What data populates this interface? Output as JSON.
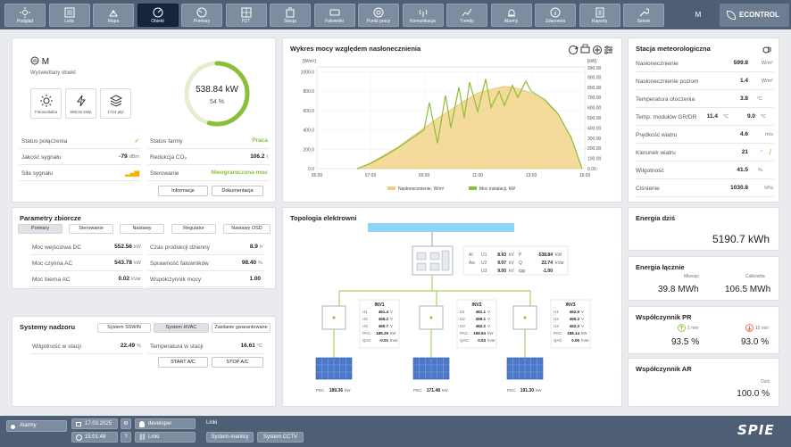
{
  "nav": {
    "items": [
      {
        "label": "Podgląd",
        "icon": "sun-icon"
      },
      {
        "label": "Lista",
        "icon": "list-icon"
      },
      {
        "label": "Mapa",
        "icon": "map-icon"
      },
      {
        "label": "Obiekt",
        "icon": "gauge-icon"
      },
      {
        "label": "Pomiary",
        "icon": "meter-icon"
      },
      {
        "label": "PZT",
        "icon": "plan-icon"
      },
      {
        "label": "Stacja",
        "icon": "station-icon"
      },
      {
        "label": "Falowniki",
        "icon": "inverter-icon"
      },
      {
        "label": "Punkt pracy",
        "icon": "target-icon"
      },
      {
        "label": "Komunikacja",
        "icon": "antenna-icon"
      },
      {
        "label": "Trendy",
        "icon": "trend-icon"
      },
      {
        "label": "Alarmy",
        "icon": "alarm-icon"
      },
      {
        "label": "Zdarzenia",
        "icon": "info-icon"
      },
      {
        "label": "Raporty",
        "icon": "report-icon"
      },
      {
        "label": "Serwis",
        "icon": "wrench-icon"
      }
    ],
    "active_index": 3,
    "user_initial": "M",
    "logo": "ECONTROL"
  },
  "object": {
    "name": "M",
    "subtitle": "Wyświetlany obiekt",
    "badges": [
      "Fotowoltaika",
      "999,92 kWp",
      "1724 płyt"
    ],
    "power": "538.84 kW",
    "percent": "54 %",
    "percent_value": 54,
    "left_rows": [
      {
        "label": "Status połączenia",
        "value": "✓",
        "unit": ""
      },
      {
        "label": "Jakość sygnału",
        "value": "-79",
        "unit": "dBm"
      },
      {
        "label": "Siła sygnału",
        "value": "▂▄▆",
        "unit": ""
      }
    ],
    "right_rows": [
      {
        "label": "Status farmy",
        "value": "Praca",
        "unit": ""
      },
      {
        "label": "Redukcja CO₂",
        "value": "106.2",
        "unit": "t"
      },
      {
        "label": "Sterowanie",
        "value": "Nieograniczona moc",
        "unit": ""
      }
    ],
    "info_button": "Informacje",
    "docs_button": "Dokumentacja"
  },
  "chart": {
    "title": "Wykres mocy względem nasłonecznienia",
    "chart_data": {
      "type": "area",
      "left_unit": "[W/m²]",
      "right_unit": "[kW]",
      "x_ticks": [
        "05:00",
        "07:00",
        "09:00",
        "11:00",
        "13:00",
        "15:00"
      ],
      "left_ticks": [
        "1000.0",
        "800.0",
        "600.0",
        "400.0",
        "200.0",
        "0.0"
      ],
      "right_ticks": [
        "990.00",
        "900.00",
        "800.00",
        "700.00",
        "600.00",
        "500.00",
        "400.00",
        "300.00",
        "200.00",
        "100.00",
        "0.00"
      ],
      "left_range": [
        0,
        1050
      ],
      "right_range": [
        0,
        1000
      ],
      "x_range": [
        5,
        15
      ],
      "series": [
        {
          "name": "Nasłonecznienie, W/m²",
          "color": "#f0cf7a",
          "x": [
            6.5,
            7.0,
            7.5,
            8.0,
            8.5,
            9.0,
            9.5,
            10.0,
            10.5,
            11.0,
            11.5,
            12.0,
            12.5,
            13.0,
            13.5,
            14.0,
            14.5,
            14.9
          ],
          "y": [
            0,
            60,
            140,
            220,
            320,
            420,
            520,
            610,
            700,
            780,
            820,
            850,
            830,
            780,
            700,
            560,
            320,
            0
          ]
        },
        {
          "name": "Moc instalacji, kW",
          "color": "#8bbf3a",
          "x": [
            6.5,
            7.0,
            7.5,
            8.0,
            8.5,
            9.0,
            9.2,
            9.5,
            9.8,
            10.0,
            10.3,
            10.5,
            10.7,
            11.0,
            11.3,
            11.5,
            11.8,
            12.0,
            12.3,
            12.5,
            12.8,
            13.0,
            13.5,
            14.0,
            14.5,
            14.9
          ],
          "y": [
            0,
            50,
            120,
            200,
            290,
            380,
            650,
            250,
            720,
            400,
            800,
            500,
            850,
            560,
            880,
            600,
            760,
            620,
            820,
            700,
            860,
            760,
            680,
            540,
            300,
            0
          ]
        }
      ]
    }
  },
  "met": {
    "title": "Stacja meteorologiczna",
    "rows": [
      {
        "label": "Nasłonecznienie",
        "value": "599.8",
        "unit": "W/m²"
      },
      {
        "label": "Nasłonecznienie poziom",
        "value": "1.4",
        "unit": "W/m²"
      },
      {
        "label": "Temperatura otoczenia",
        "value": "3.8",
        "unit": "°C"
      },
      {
        "label": "Temp. modułów GR/DR",
        "value": "11.4",
        "unit": "°C",
        "value2": "9.0",
        "unit2": "°C"
      },
      {
        "label": "Prędkość wiatru",
        "value": "4.6",
        "unit": "m/s"
      },
      {
        "label": "Kierunek wiatru",
        "value": "21",
        "unit": "°"
      },
      {
        "label": "Wilgotność",
        "value": "41.5",
        "unit": "%"
      },
      {
        "label": "Ciśnienie",
        "value": "1030.8",
        "unit": "hPa"
      }
    ]
  },
  "params": {
    "title": "Parametry zbiorcze",
    "tabs": [
      "Pomiary",
      "Sterowanie",
      "Nastawy",
      "Regulator",
      "Nastawy OSD"
    ],
    "left_rows": [
      {
        "label": "Moc wejściowa DC",
        "value": "552.56",
        "unit": "kW"
      },
      {
        "label": "Moc czynna AC",
        "value": "543.78",
        "unit": "kW"
      },
      {
        "label": "Moc bierna AC",
        "value": "0.02",
        "unit": "kVar"
      }
    ],
    "right_rows": [
      {
        "label": "Czas produkcji dzienny",
        "value": "8.9",
        "unit": "h"
      },
      {
        "label": "Sprawność falowników",
        "value": "98.40",
        "unit": "%"
      },
      {
        "label": "Współczynnik mocy",
        "value": "1.00",
        "unit": ""
      }
    ]
  },
  "systems": {
    "title": "Systemy nadzoru",
    "tabs": [
      "System SSWiN",
      "System HVAC",
      "Zasilanie gwarantowane"
    ],
    "humidity_label": "Wilgotność w stacji",
    "humidity_value": "22.49",
    "humidity_unit": "%",
    "temp_label": "Temperatura w stacji",
    "temp_value": "16.61",
    "temp_unit": "°C",
    "start_button": "START A/C",
    "stop_button": "STOP A/C"
  },
  "topo": {
    "title": "Topologia elektrowni",
    "meter": {
      "rows": [
        {
          "a": "AI",
          "b": "U1",
          "c": "8.93",
          "d": "kV",
          "e": "P",
          "f": "-538.84",
          "g": "kW"
        },
        {
          "a": "Aw",
          "b": "U2",
          "c": "9.07",
          "d": "kV",
          "e": "Q",
          "f": "22.74",
          "g": "kVar"
        },
        {
          "a": "",
          "b": "U3",
          "c": "9.00",
          "d": "kV",
          "e": "tgφ",
          "f": "-1.00",
          "g": ""
        }
      ]
    },
    "inverters": [
      {
        "name": "INV1",
        "u1": "461.4",
        "u2": "459.2",
        "u3": "460.7",
        "pac": "186.29",
        "qac": "-0.01",
        "pdc": "189.36"
      },
      {
        "name": "INV2",
        "u1": "461.1",
        "u2": "459.1",
        "u3": "462.2",
        "pac": "168.94",
        "qac": "0.03",
        "pdc": "171.48"
      },
      {
        "name": "INV3",
        "u1": "462.6",
        "u2": "460.3",
        "u3": "462.3",
        "pac": "188.14",
        "qac": "0.05",
        "pdc": "191.30"
      }
    ],
    "labels": {
      "u1": "U1",
      "u2": "U2",
      "u3": "U3",
      "pac": "PAC",
      "qac": "QAC",
      "pdc": "PDC",
      "v": "V",
      "kw": "kW",
      "kvar": "kVar"
    }
  },
  "energy_today": {
    "title": "Energia dziś",
    "value": "5190.7 kWh"
  },
  "energy_total": {
    "title": "Energia łącznie",
    "month_label": "Miesiąc",
    "month_value": "39.8 MWh",
    "total_label": "Całkowita",
    "total_value": "106.5 MWh"
  },
  "pr": {
    "title": "Współczynnik PR",
    "cap1": "1 min",
    "val1": "93.5 %",
    "cap2": "15 min",
    "val2": "93.0 %"
  },
  "ar": {
    "title": "Współczynnik AR",
    "cap": "Dziś",
    "value": "100.0 %"
  },
  "footer": {
    "alarms": "Alarmy",
    "date": "17.03.2025",
    "time": "15:01:48",
    "user": "developer",
    "links_button": "Linki",
    "links_title": "Linki",
    "link1": "System-manlicy",
    "link2": "System CCTV",
    "brand": "SPIE"
  }
}
